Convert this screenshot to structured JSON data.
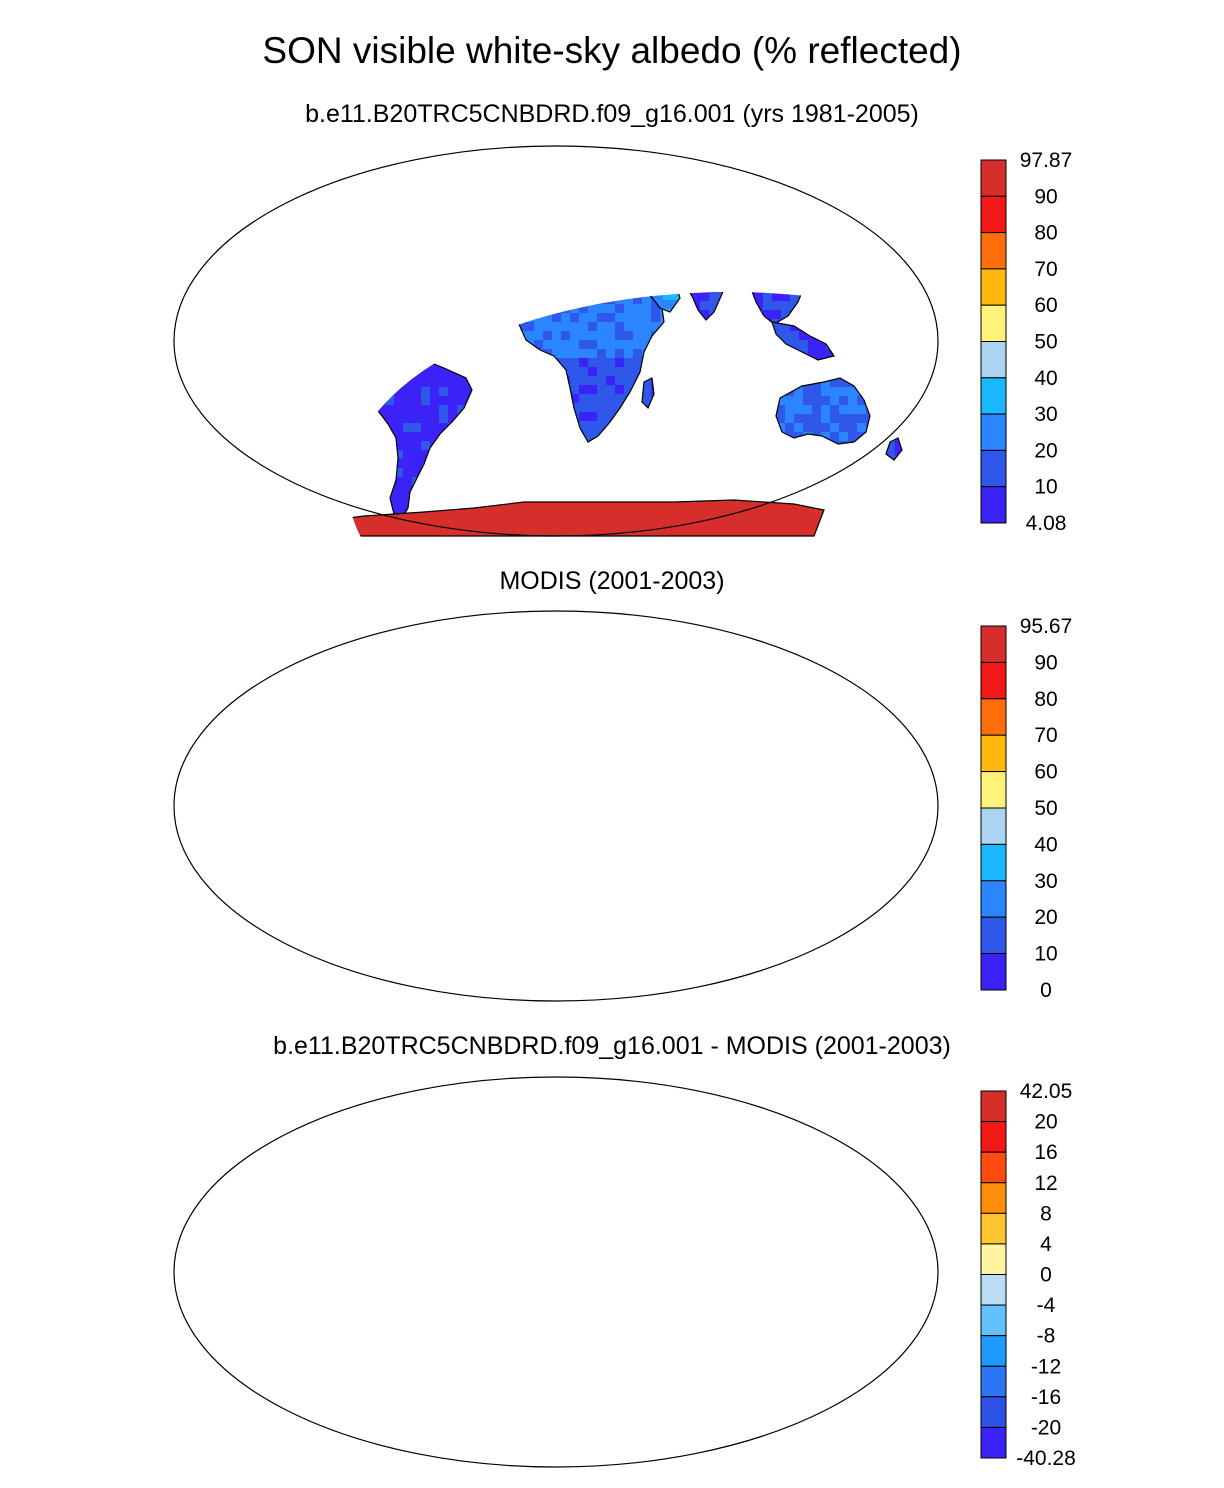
{
  "main_title": "SON visible white-sky albedo (% reflected)",
  "panels": [
    {
      "title": "b.e11.B20TRC5CNBDRD.f09_g16.001 (yrs 1981-2005)",
      "colorbar": {
        "labels": [
          "97.87",
          "90",
          "80",
          "70",
          "60",
          "50",
          "40",
          "30",
          "20",
          "10",
          "4.08"
        ],
        "colors": [
          "#d62f2b",
          "#f21818",
          "#ff6e0a",
          "#ffb80c",
          "#fff27a",
          "#aad4ef",
          "#1ab8ff",
          "#2a85ff",
          "#2f58eb",
          "#3b22f6"
        ]
      },
      "scheme": "model"
    },
    {
      "title": "MODIS (2001-2003)",
      "colorbar": {
        "labels": [
          "95.67",
          "90",
          "80",
          "70",
          "60",
          "50",
          "40",
          "30",
          "20",
          "10",
          "0"
        ],
        "colors": [
          "#d62f2b",
          "#f21818",
          "#ff6e0a",
          "#ffb80c",
          "#fff27a",
          "#aad4ef",
          "#1ab8ff",
          "#2a85ff",
          "#2f58eb",
          "#3b22f6"
        ]
      },
      "scheme": "modis"
    },
    {
      "title": "b.e11.B20TRC5CNBDRD.f09_g16.001 - MODIS (2001-2003)",
      "colorbar": {
        "labels": [
          "42.05",
          "20",
          "16",
          "12",
          "8",
          "4",
          "0",
          "-4",
          "-8",
          "-12",
          "-16",
          "-20",
          "-40.28"
        ],
        "colors": [
          "#d62f2b",
          "#f21818",
          "#ff4a10",
          "#ff8f0a",
          "#ffc42e",
          "#fff59e",
          "#bcdcf3",
          "#63c0ff",
          "#1f9bff",
          "#2e75f5",
          "#2f52e6",
          "#3b22f6"
        ]
      },
      "scheme": "diff"
    }
  ]
}
